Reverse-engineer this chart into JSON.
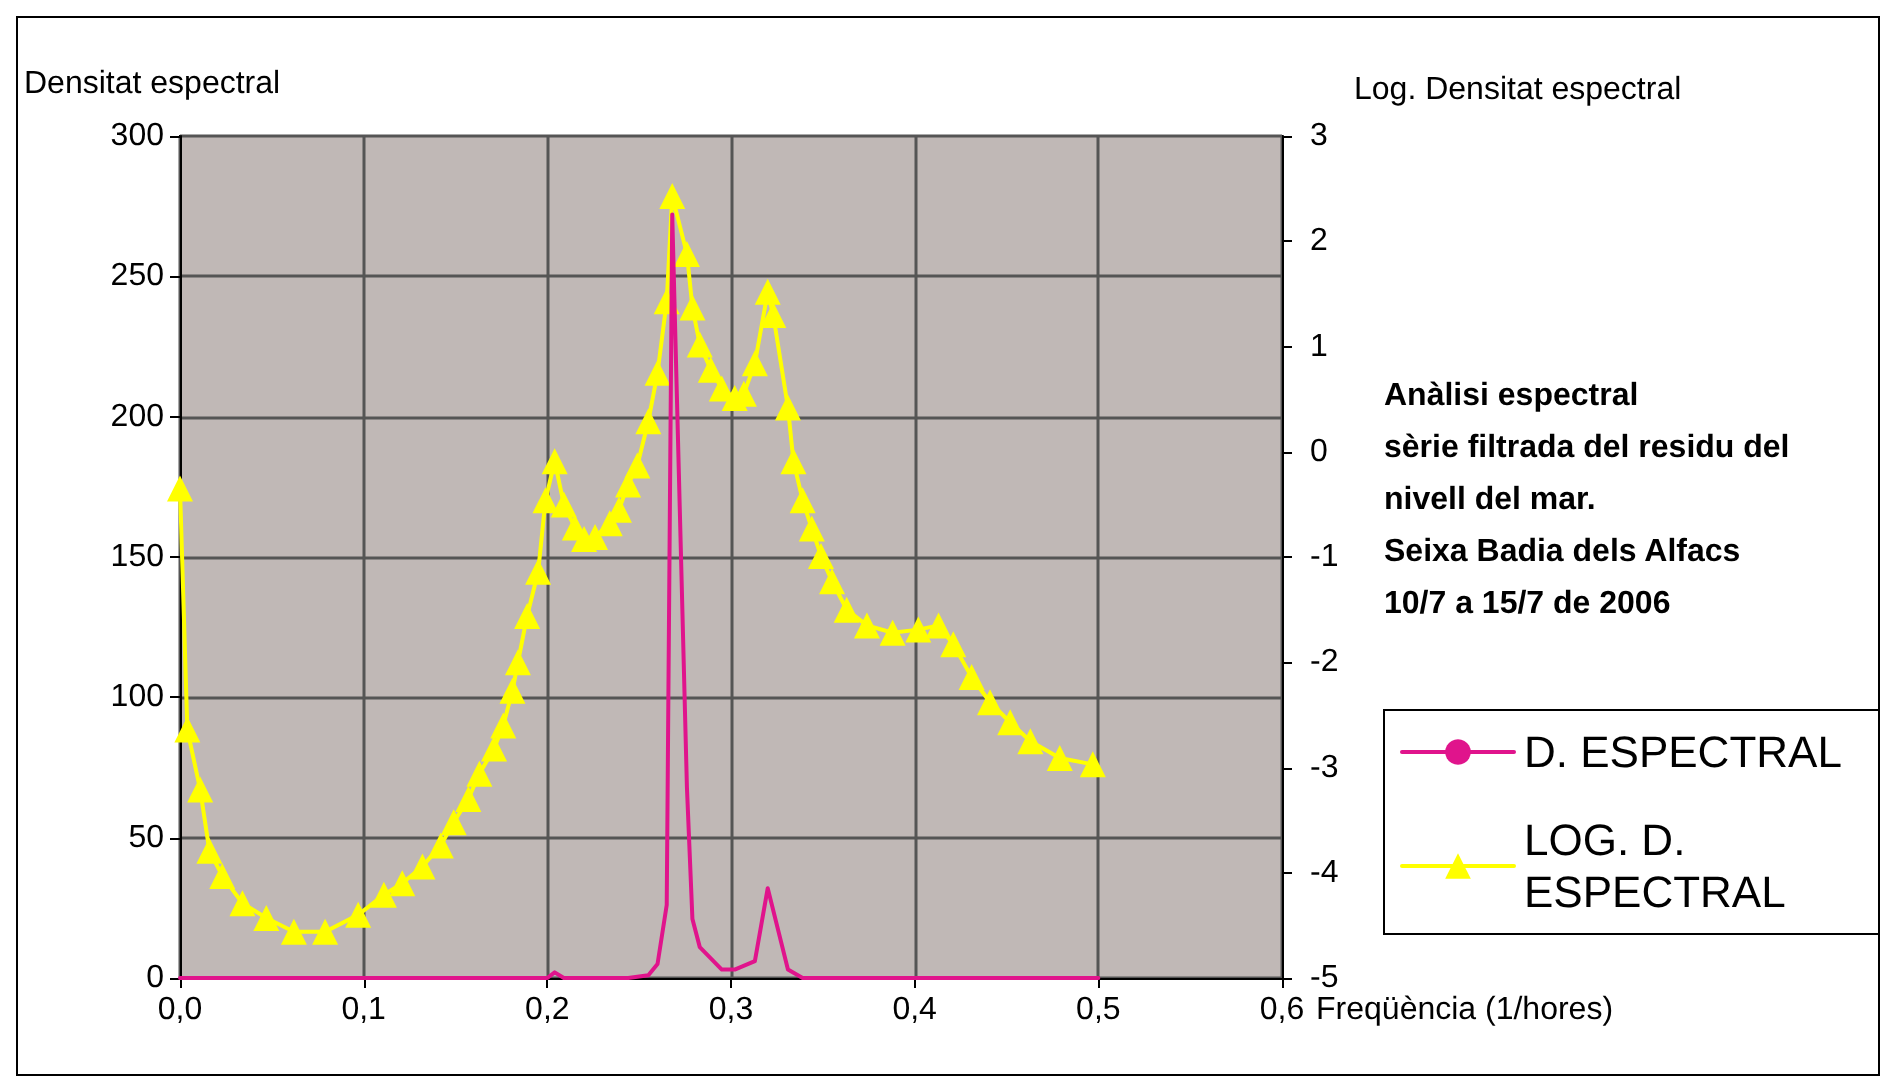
{
  "chart_data": {
    "type": "line",
    "xlabel": "Freqüència (1/hores)",
    "ylabel": "Densitat espectral",
    "y2label": "Log. Densitat espectral",
    "annotations": [
      "Anàlisi espectral",
      "sèrie filtrada del residu del",
      "nivell del mar.",
      "Seixa Badia dels Alfacs",
      "10/7 a 15/7 de 2006"
    ],
    "xlim": [
      0,
      0.6
    ],
    "xticks": [
      {
        "value": 0,
        "label": "0,0"
      },
      {
        "value": 0.1,
        "label": "0,1"
      },
      {
        "value": 0.2,
        "label": "0,2"
      },
      {
        "value": 0.3,
        "label": "0,3"
      },
      {
        "value": 0.4,
        "label": "0,4"
      },
      {
        "value": 0.5,
        "label": "0,5"
      },
      {
        "value": 0.6,
        "label": "0,6"
      }
    ],
    "ylim": [
      0,
      300
    ],
    "yticks": [
      0,
      50,
      100,
      150,
      200,
      250,
      300
    ],
    "y2lim": [
      -5,
      3
    ],
    "y2ticks": [
      -5,
      -4,
      -3,
      -2,
      -1,
      0,
      1,
      2,
      3
    ],
    "grid": true,
    "legend": "right",
    "series": [
      {
        "name": "D. ESPECTRAL",
        "color": "#e0148c",
        "marker": "none",
        "x": [
          0,
          0.2,
          0.204,
          0.209,
          0.244,
          0.255,
          0.26,
          0.265,
          0.268,
          0.276,
          0.279,
          0.283,
          0.295,
          0.302,
          0.313,
          0.32,
          0.331,
          0.339,
          0.5
        ],
        "values": [
          0,
          0,
          2,
          0,
          0,
          1,
          5,
          26,
          272,
          68,
          21,
          11,
          3,
          3,
          6,
          32,
          3,
          0,
          0
        ]
      },
      {
        "name": "LOG. D. ESPECTRAL",
        "color": "#ffff00",
        "axis": "y2",
        "marker": "triangle",
        "x": [
          0,
          0.004,
          0.011,
          0.016,
          0.023,
          0.034,
          0.047,
          0.062,
          0.079,
          0.097,
          0.111,
          0.121,
          0.132,
          0.142,
          0.149,
          0.157,
          0.163,
          0.171,
          0.176,
          0.181,
          0.184,
          0.189,
          0.195,
          0.199,
          0.204,
          0.209,
          0.215,
          0.22,
          0.226,
          0.234,
          0.239,
          0.244,
          0.249,
          0.255,
          0.26,
          0.265,
          0.268,
          0.276,
          0.279,
          0.283,
          0.289,
          0.295,
          0.302,
          0.307,
          0.313,
          0.32,
          0.323,
          0.331,
          0.334,
          0.339,
          0.344,
          0.349,
          0.355,
          0.363,
          0.374,
          0.388,
          0.402,
          0.413,
          0.421,
          0.431,
          0.441,
          0.452,
          0.463,
          0.479,
          0.497
        ],
        "values": [
          -0.35,
          -2.64,
          -3.21,
          -3.79,
          -4.03,
          -4.29,
          -4.43,
          -4.56,
          -4.56,
          -4.4,
          -4.21,
          -4.1,
          -3.94,
          -3.74,
          -3.52,
          -3.3,
          -3.06,
          -2.82,
          -2.6,
          -2.27,
          -2,
          -1.56,
          -1.14,
          -0.46,
          -0.09,
          -0.5,
          -0.72,
          -0.83,
          -0.81,
          -0.68,
          -0.55,
          -0.31,
          -0.13,
          0.29,
          0.75,
          1.43,
          2.43,
          1.88,
          1.37,
          1.02,
          0.78,
          0.6,
          0.51,
          0.55,
          0.84,
          1.52,
          1.3,
          0.42,
          -0.09,
          -0.46,
          -0.73,
          -0.99,
          -1.23,
          -1.5,
          -1.65,
          -1.72,
          -1.69,
          -1.65,
          -1.83,
          -2.14,
          -2.38,
          -2.57,
          -2.75,
          -2.91,
          -2.97
        ]
      }
    ]
  }
}
